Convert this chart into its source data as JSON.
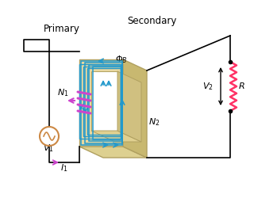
{
  "bg_color": "#ffffff",
  "transformer_front_color": "#e8d8a0",
  "transformer_top_color": "#ddd090",
  "transformer_right_color": "#c8b870",
  "transformer_edge": "#b0a060",
  "coil_color": "#2299cc",
  "wire_color": "#000000",
  "magenta_color": "#cc44cc",
  "resistor_color": "#ff3366",
  "source_color": "#cc8844",
  "label_I1": "$I_1$",
  "label_V1": "$V_1$",
  "label_V2": "$V_2$",
  "label_N1": "$N_1$",
  "label_N2": "$N_2$",
  "label_PhiB": "$\\Phi_B$",
  "label_R": "$R$",
  "label_Primary": "Primary",
  "label_Secondary": "Secondary",
  "figsize": [
    3.2,
    2.6
  ],
  "dpi": 100
}
